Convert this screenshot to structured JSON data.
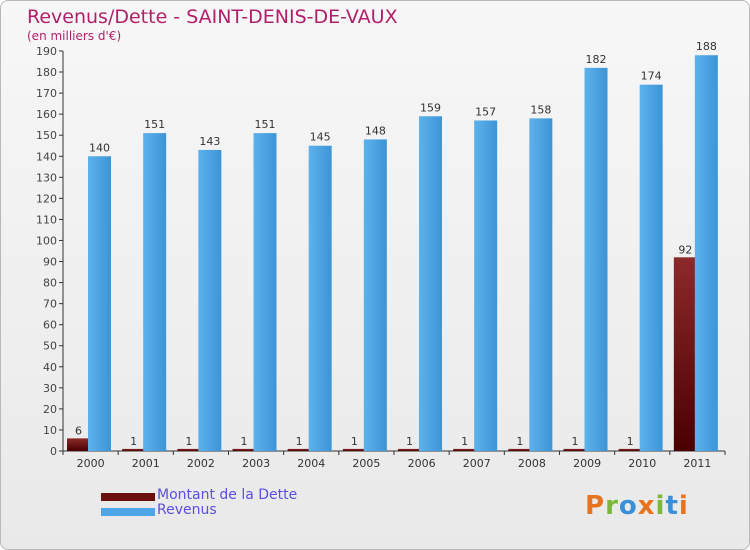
{
  "title": "Revenus/Dette - SAINT-DENIS-DE-VAUX",
  "subtitle": "(en milliers d'€)",
  "legend": {
    "dette_label": "Montant de la Dette",
    "revenus_label": "Revenus"
  },
  "logo": {
    "text": "Proxiti"
  },
  "colors": {
    "dette": "#7a1a1a",
    "revenus": "#4ea6e6",
    "title": "#b0206a",
    "legend_text": "#5a4fe0"
  },
  "chart_data": {
    "type": "bar",
    "categories": [
      "2000",
      "2001",
      "2002",
      "2003",
      "2004",
      "2005",
      "2006",
      "2007",
      "2008",
      "2009",
      "2010",
      "2011"
    ],
    "series": [
      {
        "name": "Montant de la Dette",
        "values": [
          6,
          1,
          1,
          1,
          1,
          1,
          1,
          1,
          1,
          1,
          1,
          92
        ]
      },
      {
        "name": "Revenus",
        "values": [
          140,
          151,
          143,
          151,
          145,
          148,
          159,
          157,
          158,
          182,
          174,
          188
        ]
      }
    ],
    "ylim": [
      0,
      190
    ],
    "yticks": [
      0,
      10,
      20,
      30,
      40,
      50,
      60,
      70,
      80,
      90,
      100,
      110,
      120,
      130,
      140,
      150,
      160,
      170,
      180,
      190
    ],
    "grid": false,
    "legend_position": "bottom-left"
  }
}
